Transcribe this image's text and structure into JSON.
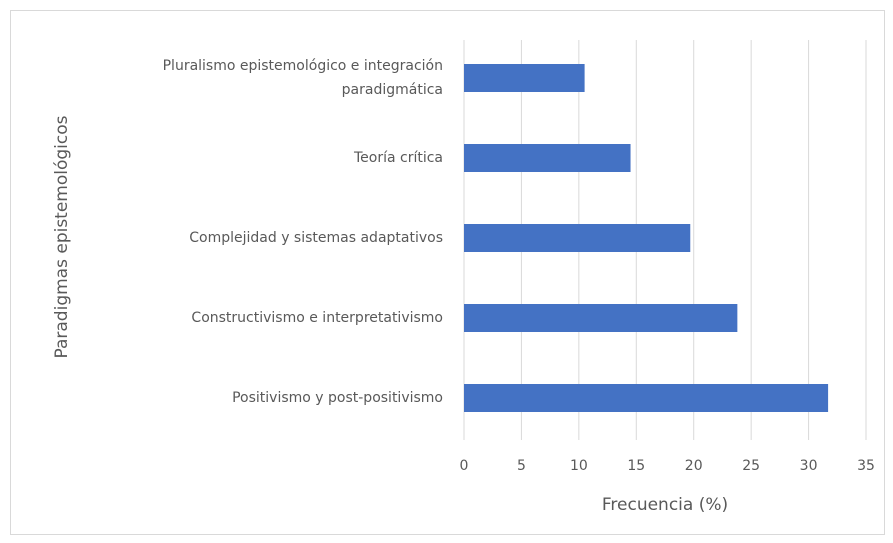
{
  "chart_data": {
    "type": "bar",
    "orientation": "horizontal",
    "x_label": "Frecuencia (%)",
    "y_label": "Paradigmas epistemológicos",
    "categories": [
      "Pluralismo epistemológico e integración paradigmática",
      "Teoría crítica",
      "Complejidad y sistemas adaptativos",
      "Constructivismo e interpretativismo",
      "Positivismo y post-positivismo"
    ],
    "values": [
      10.5,
      14.5,
      19.7,
      23.8,
      31.7
    ],
    "color": "#4472c4",
    "xlim": [
      0,
      35
    ],
    "xticks": [
      0,
      5,
      10,
      15,
      20,
      25,
      30,
      35
    ],
    "grid": true
  }
}
